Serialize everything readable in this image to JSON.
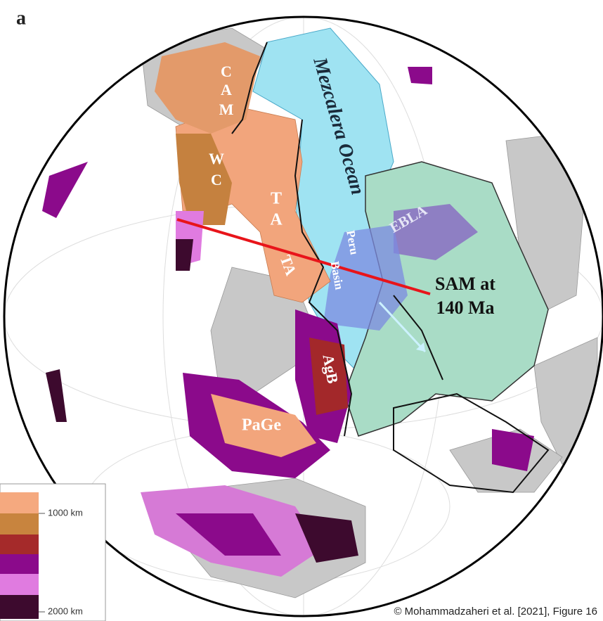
{
  "panel_label": "a",
  "labels": {
    "cam": [
      "C",
      "A",
      "M"
    ],
    "wc": [
      "W",
      "C"
    ],
    "ta_upper": [
      "T",
      "A"
    ],
    "ta_lower": "TA",
    "ocean": "Mezcalera Ocean",
    "peru_basin": [
      "Peru",
      "Basin"
    ],
    "ebla": "EBLA",
    "sam": [
      "SAM at",
      "140 Ma"
    ],
    "agb": "AgB",
    "page": "PaGe"
  },
  "legend": {
    "top": "1000 km",
    "bottom": "2000 km"
  },
  "credit": "©  Mohammadzaheri et al. [2021], Figure 16"
}
